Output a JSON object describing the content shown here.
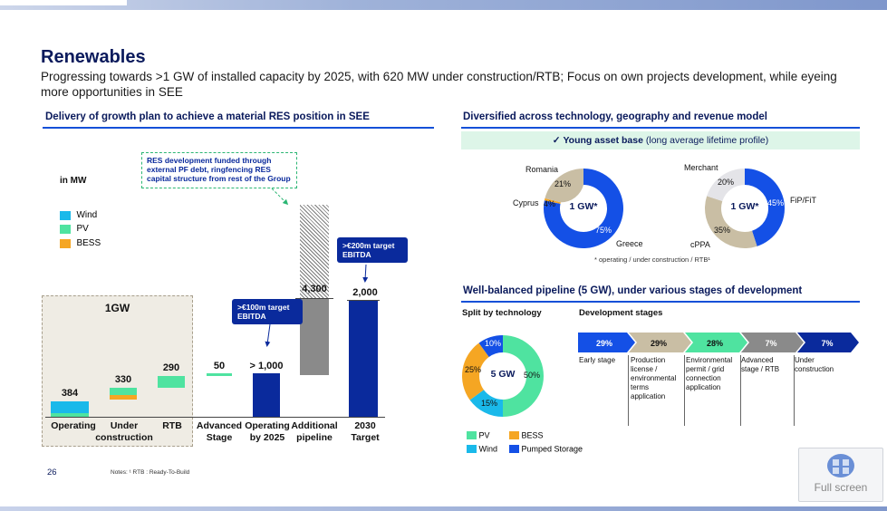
{
  "header": {
    "title": "Renewables",
    "subtitle": "Progressing towards >1 GW of installed capacity by 2025, with 620 MW under construction/RTB; Focus on own projects development, while eyeing more opportunities in SEE"
  },
  "left": {
    "section_title": "Delivery of growth plan to achieve a material RES position in SEE",
    "unit": "in MW",
    "legend": [
      "Wind",
      "PV",
      "BESS"
    ],
    "group_label": "1GW",
    "note_box": "RES development funded through external PF debt, ringfencing RES capital structure from rest of the Group",
    "callout_1": ">€100m target EBITDA",
    "callout_2": ">€200m target EBITDA",
    "categories": [
      "Operating",
      "Under construction",
      "RTB",
      "Advanced Stage",
      "Operating by 2025",
      "Additional pipeline",
      "2030 Target"
    ],
    "values": [
      "384",
      "330",
      "290",
      "50",
      "> 1,000",
      "4,300",
      "2,000"
    ]
  },
  "chart_data": [
    {
      "type": "bar",
      "title": "Delivery of growth plan to achieve a material RES position in SEE",
      "ylabel": "in MW",
      "categories": [
        "Operating",
        "Under construction",
        "RTB",
        "Advanced Stage",
        "Operating by 2025",
        "Additional pipeline",
        "2030 Target"
      ],
      "values": [
        384,
        330,
        290,
        50,
        1000,
        4300,
        2000
      ]
    },
    {
      "type": "pie",
      "center_label": "1 GW*",
      "labels": [
        "Romania",
        "Cyprus",
        "Greece"
      ],
      "values": [
        21,
        4,
        75
      ]
    },
    {
      "type": "pie",
      "center_label": "1 GW*",
      "labels": [
        "Merchant",
        "FiP/FiT",
        "cPPA"
      ],
      "values": [
        20,
        45,
        35
      ]
    },
    {
      "type": "pie",
      "center_label": "5 GW",
      "labels": [
        "PV",
        "Wind",
        "BESS",
        "Pumped Storage"
      ],
      "values": [
        50,
        15,
        25,
        10
      ]
    }
  ],
  "right_top": {
    "section_title": "Diversified across technology, geography and revenue model",
    "banner_check": "✓",
    "banner_bold": "Young asset base",
    "banner_rest": "(long average lifetime profile)",
    "donut1": {
      "center": "1 GW*",
      "labels": {
        "romania": "Romania",
        "cyprus": "Cyprus",
        "greece": "Greece"
      },
      "pcts": {
        "romania": "21%",
        "cyprus": "4%",
        "greece": "75%"
      }
    },
    "donut2": {
      "center": "1 GW*",
      "labels": {
        "merchant": "Merchant",
        "fipfit": "FiP/FiT",
        "cppa": "cPPA"
      },
      "pcts": {
        "merchant": "20%",
        "fipfit": "45%",
        "cppa": "35%"
      }
    },
    "footnote": "* operating / under construction / RTB¹"
  },
  "right_bottom": {
    "section_title": "Well-balanced pipeline (5 GW), under various stages of development",
    "split_title": "Split by technology",
    "stages_title": "Development stages",
    "donut3": {
      "center": "5 GW",
      "pcts": {
        "pumped": "10%",
        "pv": "50%",
        "wind": "15%",
        "bess": "25%"
      }
    },
    "legend": {
      "pv": "PV",
      "bess": "BESS",
      "wind": "Wind",
      "pumped": "Pumped Storage"
    },
    "stages": [
      {
        "pct": "29%",
        "label": "Early stage"
      },
      {
        "pct": "29%",
        "label": "Production license / environmental terms application"
      },
      {
        "pct": "28%",
        "label": "Environmental permit / grid connection application"
      },
      {
        "pct": "7%",
        "label": "Advanced stage / RTB"
      },
      {
        "pct": "7%",
        "label": "Under construction"
      }
    ]
  },
  "footer": {
    "page": "26",
    "notes": "Notes: ¹ RTB : Ready-To-Build"
  },
  "fullscreen": {
    "label": "Full screen"
  },
  "colors": {
    "wind": "#1ab9ea",
    "pv": "#4fe3a0",
    "bess": "#f5a623",
    "pumped": "#1450e6",
    "navy": "#0a2a9c",
    "tan": "#c9bea4",
    "grey": "#8a8a8a"
  }
}
